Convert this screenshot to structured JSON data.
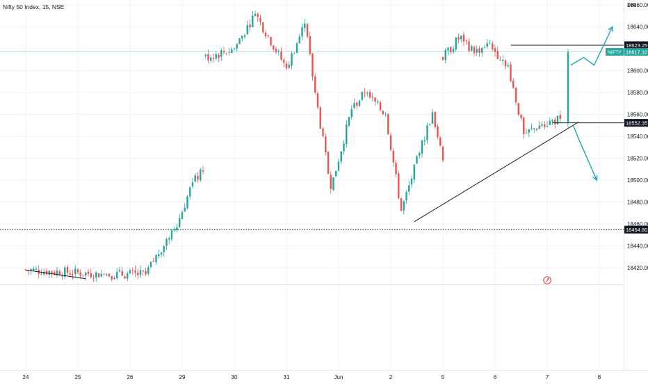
{
  "header": {
    "title": "Nifty 50 Index, 15, NSE",
    "currency": "INR"
  },
  "chart_data": {
    "type": "candlestick",
    "title": "Nifty 50 Index, 15, NSE",
    "currency": "INR",
    "ylim": [
      18406,
      18655
    ],
    "y_ticks": [
      18420,
      18440,
      18460,
      18480,
      18500,
      18520,
      18540,
      18560,
      18580,
      18600,
      18620,
      18640,
      18660
    ],
    "y_tick_labels": [
      "18420.00",
      "18440.00",
      "18460.00",
      "18480.00",
      "18500.00",
      "18520.00",
      "18540.00",
      "18560.00",
      "18580.00",
      "18600.00",
      "18620.00",
      "18640.00",
      "18660.00"
    ],
    "x_labels": [
      "24",
      "25",
      "26",
      "29",
      "30",
      "31",
      "Jun",
      "2",
      "5",
      "6",
      "7",
      "8"
    ],
    "x_label_bar_index": [
      0,
      20,
      40,
      60,
      80,
      100,
      120,
      140,
      160,
      180,
      200,
      220
    ],
    "up_color": "#26a69a",
    "down_color": "#ef5350",
    "price_labels": [
      {
        "label": "18623.25",
        "value": 18623.25,
        "style": "level"
      },
      {
        "label": "18617.10",
        "value": 18617.1,
        "symbol": "NIFTY",
        "style": "current"
      },
      {
        "label": "18552.35",
        "value": 18552.35,
        "style": "level"
      },
      {
        "label": "18454.80",
        "value": 18454.8,
        "style": "dotted"
      }
    ],
    "segments": [
      {
        "start_bar": 0,
        "start_price": 18418,
        "anchors": [
          [
            30,
            18414
          ],
          [
            46,
            18414
          ],
          [
            54,
            18446
          ],
          [
            59,
            18465
          ],
          [
            64,
            18498
          ],
          [
            68,
            18508
          ]
        ]
      },
      {
        "start_bar": 69,
        "start_price": 18612,
        "anchors": [
          [
            80,
            18620
          ],
          [
            88,
            18652
          ],
          [
            100,
            18602
          ],
          [
            107,
            18643
          ],
          [
            111,
            18580
          ],
          [
            117,
            18492
          ],
          [
            125,
            18565
          ],
          [
            130,
            18580
          ],
          [
            138,
            18560
          ],
          [
            144,
            18472
          ],
          [
            151,
            18525
          ],
          [
            156,
            18562
          ],
          [
            160,
            18518
          ]
        ]
      },
      {
        "start_bar": 160,
        "start_price": 18612,
        "anchors": [
          [
            167,
            18632
          ],
          [
            172,
            18616
          ],
          [
            177,
            18625
          ],
          [
            185,
            18605
          ],
          [
            191,
            18542
          ],
          [
            198,
            18551
          ],
          [
            205,
            18556
          ]
        ]
      }
    ],
    "final_bar": {
      "index": 208,
      "open": 18553,
      "close": 18617,
      "high": 18620,
      "low": 18548
    },
    "trendlines": [
      {
        "from": [
          0,
          18418
        ],
        "to": [
          23,
          18410
        ],
        "color": "#131722"
      },
      {
        "from": [
          149,
          18462
        ],
        "to": [
          212,
          18553
        ],
        "color": "#131722"
      },
      {
        "from": [
          186,
          18623.25
        ],
        "to": [
          237,
          18623.25
        ],
        "color": "#131722"
      },
      {
        "from": [
          202,
          18552.35
        ],
        "to": [
          237,
          18552.35
        ],
        "color": "#131722"
      }
    ],
    "arrows": [
      {
        "color": "#1fa2b8",
        "points": [
          [
            209,
            18605
          ],
          [
            214,
            18612
          ],
          [
            218,
            18605
          ],
          [
            225,
            18640
          ]
        ]
      },
      {
        "color": "#1fa2b8",
        "points": [
          [
            210,
            18550
          ],
          [
            212,
            18538
          ],
          [
            219,
            18500
          ]
        ]
      }
    ],
    "bar_spacing_px": 3.75,
    "first_bar_px": 37
  }
}
